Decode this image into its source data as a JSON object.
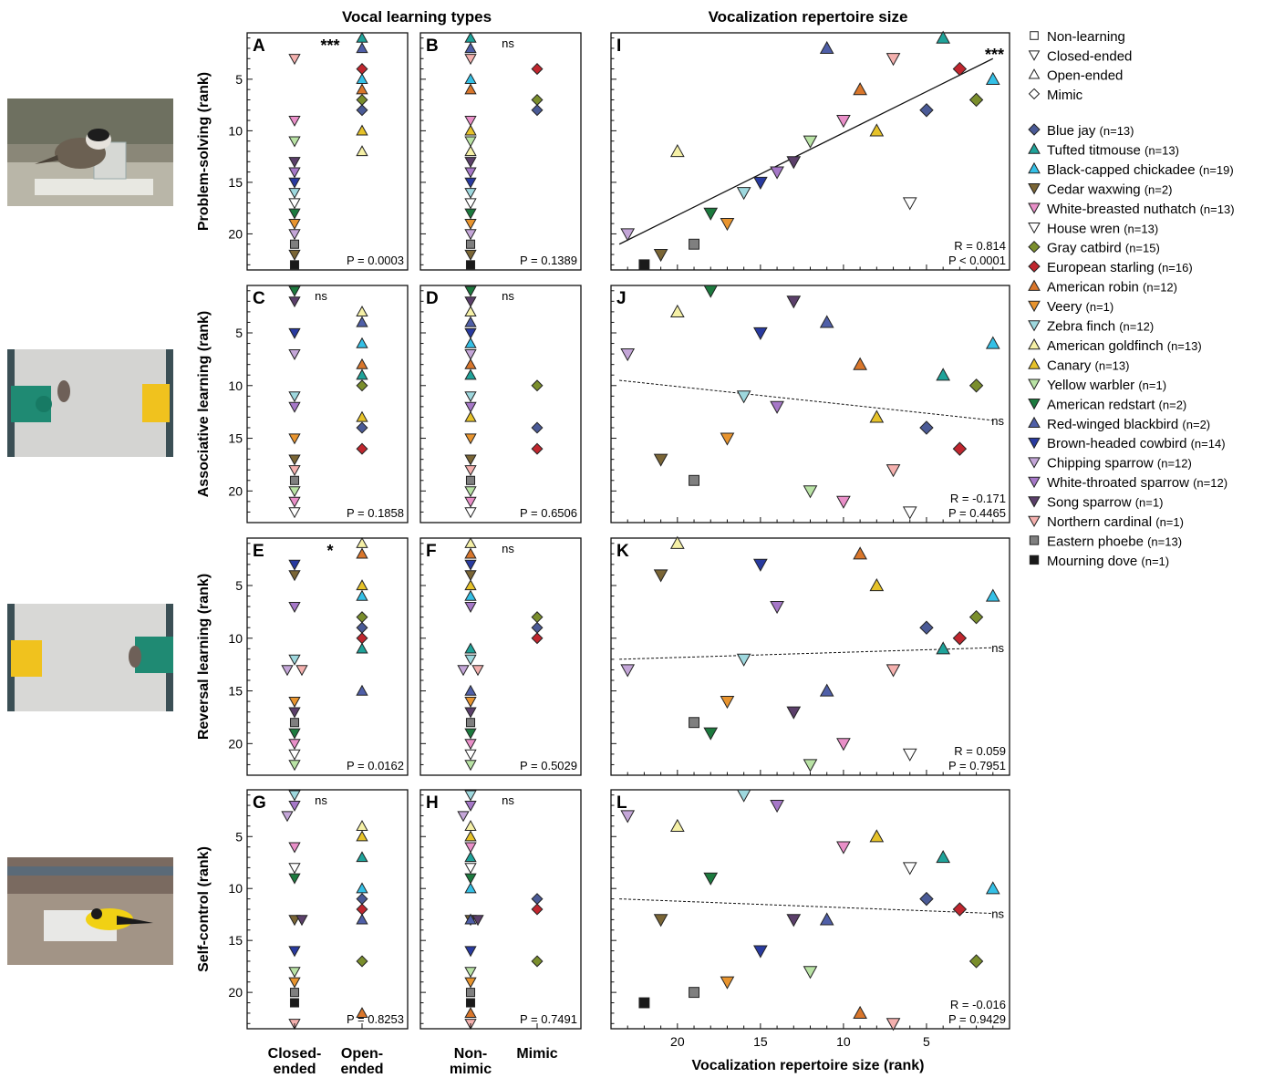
{
  "header": {
    "left_title": "Vocal learning types",
    "right_title": "Vocalization repertoire size"
  },
  "photos": [
    "bird-on-puzzle-box",
    "bird-between-green-and-yellow-cups",
    "bird-near-yellow-and-green-cups",
    "goldfinch-on-platform"
  ],
  "rows": [
    {
      "ylabel": "Problem-solving (rank)",
      "left_letter": "A",
      "mid_letter": "B",
      "right_letter": "I",
      "left_sig": "***",
      "mid_sig": "ns",
      "left_p": "P = 0.0003",
      "mid_p": "P = 0.1389",
      "right_sig": "***",
      "right_r": "R = 0.814",
      "right_p": "P < 0.0001"
    },
    {
      "ylabel": "Associative learning (rank)",
      "left_letter": "C",
      "mid_letter": "D",
      "right_letter": "J",
      "left_sig": "ns",
      "mid_sig": "ns",
      "left_p": "P = 0.1858",
      "mid_p": "P = 0.6506",
      "right_sig": "ns",
      "right_r": "R = -0.171",
      "right_p": "P = 0.4465"
    },
    {
      "ylabel": "Reversal learning (rank)",
      "left_letter": "E",
      "mid_letter": "F",
      "right_letter": "K",
      "left_sig": "*",
      "mid_sig": "ns",
      "left_p": "P = 0.0162",
      "mid_p": "P = 0.5029",
      "right_sig": "ns",
      "right_r": "R = 0.059",
      "right_p": "P = 0.7951"
    },
    {
      "ylabel": "Self-control (rank)",
      "left_letter": "G",
      "mid_letter": "H",
      "right_letter": "L",
      "left_sig": "ns",
      "mid_sig": "ns",
      "left_p": "P = 0.8253",
      "mid_p": "P = 0.7491",
      "right_sig": "ns",
      "right_r": "R = -0.016",
      "right_p": "P = 0.9429"
    }
  ],
  "xaxis": {
    "left_cats": [
      "Closed-\nended",
      "Open-\nended"
    ],
    "mid_cats": [
      "Non-\nmimic",
      "Mimic"
    ],
    "right_label": "Vocalization repertoire size (rank)",
    "right_ticks": [
      "20",
      "15",
      "10",
      "5"
    ]
  },
  "legend": {
    "types": [
      {
        "shape": "square",
        "label": "Non-learning"
      },
      {
        "shape": "tri-down",
        "label": "Closed-ended"
      },
      {
        "shape": "tri-up",
        "label": "Open-ended"
      },
      {
        "shape": "diamond",
        "label": "Mimic"
      }
    ],
    "species": [
      {
        "name": "Blue jay",
        "n": "(n=13)",
        "shape": "diamond",
        "color": "#4a5a96"
      },
      {
        "name": "Tufted titmouse",
        "n": "(n=13)",
        "shape": "tri-up",
        "color": "#1fa39a"
      },
      {
        "name": "Black-capped chickadee",
        "n": "(n=19)",
        "shape": "tri-up",
        "color": "#34c0e6"
      },
      {
        "name": "Cedar waxwing",
        "n": "(n=2)",
        "shape": "tri-down",
        "color": "#7a6535"
      },
      {
        "name": "White-breasted nuthatch",
        "n": "(n=13)",
        "shape": "tri-down",
        "color": "#e98fc8"
      },
      {
        "name": "House wren",
        "n": "(n=13)",
        "shape": "tri-down",
        "color": "#ffffff"
      },
      {
        "name": "Gray catbird",
        "n": "(n=15)",
        "shape": "diamond",
        "color": "#7a8e2c"
      },
      {
        "name": "European starling",
        "n": "(n=16)",
        "shape": "diamond",
        "color": "#c0262e"
      },
      {
        "name": "American robin",
        "n": "(n=12)",
        "shape": "tri-up",
        "color": "#d9762b"
      },
      {
        "name": "Veery",
        "n": "(n=1)",
        "shape": "tri-down",
        "color": "#e8942e"
      },
      {
        "name": "Zebra finch",
        "n": "(n=12)",
        "shape": "tri-down",
        "color": "#9ed8de"
      },
      {
        "name": "American goldfinch",
        "n": "(n=13)",
        "shape": "tri-up",
        "color": "#f5f0a6"
      },
      {
        "name": "Canary",
        "n": "(n=13)",
        "shape": "tri-up",
        "color": "#e6c229"
      },
      {
        "name": "Yellow warbler",
        "n": "(n=1)",
        "shape": "tri-down",
        "color": "#b9e3a5"
      },
      {
        "name": "American redstart",
        "n": "(n=2)",
        "shape": "tri-down",
        "color": "#1c7a3e"
      },
      {
        "name": "Red-winged blackbird",
        "n": "(n=2)",
        "shape": "tri-up",
        "color": "#4f5fa8"
      },
      {
        "name": "Brown-headed cowbird",
        "n": "(n=14)",
        "shape": "tri-down",
        "color": "#283aa0"
      },
      {
        "name": "Chipping sparrow",
        "n": "(n=12)",
        "shape": "tri-down",
        "color": "#c4a6d8"
      },
      {
        "name": "White-throated sparrow",
        "n": "(n=12)",
        "shape": "tri-down",
        "color": "#a678c8"
      },
      {
        "name": "Song sparrow",
        "n": "(n=1)",
        "shape": "tri-down",
        "color": "#5b3f6a"
      },
      {
        "name": "Northern cardinal",
        "n": "(n=1)",
        "shape": "tri-down",
        "color": "#f4b0ae"
      },
      {
        "name": "Eastern phoebe",
        "n": "(n=13)",
        "shape": "square",
        "color": "#7f7f7f"
      },
      {
        "name": "Mourning dove",
        "n": "(n=1)",
        "shape": "square",
        "color": "#1a1a1a"
      }
    ]
  },
  "chart_data": [
    {
      "type": "scatter",
      "panels": [
        "A/B",
        "I"
      ],
      "ylabel": "Problem-solving (rank)",
      "ylim": [
        23.5,
        0.5
      ],
      "yticks": [
        5,
        10,
        15,
        20
      ],
      "xlabel": "Vocalization repertoire size (rank)",
      "xlim": [
        24,
        0
      ],
      "points": [
        {
          "sp": "Blue jay",
          "vocal": 5,
          "y": 8
        },
        {
          "sp": "Tufted titmouse",
          "vocal": 4,
          "y": 1
        },
        {
          "sp": "Black-capped chickadee",
          "vocal": 1,
          "y": 5
        },
        {
          "sp": "Cedar waxwing",
          "vocal": 21,
          "y": 22
        },
        {
          "sp": "White-breasted nuthatch",
          "vocal": 10,
          "y": 9
        },
        {
          "sp": "House wren",
          "vocal": 6,
          "y": 17
        },
        {
          "sp": "Gray catbird",
          "vocal": 2,
          "y": 7
        },
        {
          "sp": "European starling",
          "vocal": 3,
          "y": 4
        },
        {
          "sp": "American robin",
          "vocal": 9,
          "y": 6
        },
        {
          "sp": "Veery",
          "vocal": 17,
          "y": 19
        },
        {
          "sp": "Zebra finch",
          "vocal": 16,
          "y": 16
        },
        {
          "sp": "American goldfinch",
          "vocal": 20,
          "y": 12
        },
        {
          "sp": "Canary",
          "vocal": 8,
          "y": 10
        },
        {
          "sp": "Yellow warbler",
          "vocal": 12,
          "y": 11
        },
        {
          "sp": "American redstart",
          "vocal": 18,
          "y": 18
        },
        {
          "sp": "Red-winged blackbird",
          "vocal": 11,
          "y": 2
        },
        {
          "sp": "Brown-headed cowbird",
          "vocal": 15,
          "y": 15
        },
        {
          "sp": "Chipping sparrow",
          "vocal": 23,
          "y": 20
        },
        {
          "sp": "White-throated sparrow",
          "vocal": 14,
          "y": 14
        },
        {
          "sp": "Song sparrow",
          "vocal": 13,
          "y": 13
        },
        {
          "sp": "Northern cardinal",
          "vocal": 7,
          "y": 3
        },
        {
          "sp": "Eastern phoebe",
          "vocal": 19,
          "y": 21
        },
        {
          "sp": "Mourning dove",
          "vocal": 22,
          "y": 23
        }
      ],
      "fit": {
        "x": [
          23.5,
          1
        ],
        "y": [
          21,
          3
        ],
        "style": "solid"
      }
    },
    {
      "type": "scatter",
      "panels": [
        "C/D",
        "J"
      ],
      "ylabel": "Associative learning (rank)",
      "ylim": [
        23,
        0.5
      ],
      "yticks": [
        5,
        10,
        15,
        20
      ],
      "xlabel": "Vocalization repertoire size (rank)",
      "xlim": [
        24,
        0
      ],
      "points": [
        {
          "sp": "Blue jay",
          "vocal": 5,
          "y": 14
        },
        {
          "sp": "Tufted titmouse",
          "vocal": 4,
          "y": 9
        },
        {
          "sp": "Black-capped chickadee",
          "vocal": 1,
          "y": 6
        },
        {
          "sp": "Cedar waxwing",
          "vocal": 21,
          "y": 17
        },
        {
          "sp": "White-breasted nuthatch",
          "vocal": 10,
          "y": 21
        },
        {
          "sp": "House wren",
          "vocal": 6,
          "y": 22
        },
        {
          "sp": "Gray catbird",
          "vocal": 2,
          "y": 10
        },
        {
          "sp": "European starling",
          "vocal": 3,
          "y": 16
        },
        {
          "sp": "American robin",
          "vocal": 9,
          "y": 8
        },
        {
          "sp": "Veery",
          "vocal": 17,
          "y": 15
        },
        {
          "sp": "Zebra finch",
          "vocal": 16,
          "y": 11
        },
        {
          "sp": "American goldfinch",
          "vocal": 20,
          "y": 3
        },
        {
          "sp": "Canary",
          "vocal": 8,
          "y": 13
        },
        {
          "sp": "Yellow warbler",
          "vocal": 12,
          "y": 20
        },
        {
          "sp": "American redstart",
          "vocal": 18,
          "y": 1
        },
        {
          "sp": "Red-winged blackbird",
          "vocal": 11,
          "y": 4
        },
        {
          "sp": "Brown-headed cowbird",
          "vocal": 15,
          "y": 5
        },
        {
          "sp": "Chipping sparrow",
          "vocal": 23,
          "y": 7
        },
        {
          "sp": "White-throated sparrow",
          "vocal": 14,
          "y": 12
        },
        {
          "sp": "Song sparrow",
          "vocal": 13,
          "y": 2
        },
        {
          "sp": "Northern cardinal",
          "vocal": 7,
          "y": 18
        },
        {
          "sp": "Eastern phoebe",
          "vocal": 19,
          "y": 19
        },
        {
          "sp": "Mourning dove",
          "vocal": null,
          "y": null
        }
      ],
      "fit": {
        "x": [
          23.5,
          1
        ],
        "y": [
          9.5,
          13.3
        ],
        "style": "dashed"
      }
    },
    {
      "type": "scatter",
      "panels": [
        "E/F",
        "K"
      ],
      "ylabel": "Reversal learning (rank)",
      "ylim": [
        23,
        0.5
      ],
      "yticks": [
        5,
        10,
        15,
        20
      ],
      "xlabel": "Vocalization repertoire size (rank)",
      "xlim": [
        24,
        0
      ],
      "points": [
        {
          "sp": "Blue jay",
          "vocal": 5,
          "y": 9
        },
        {
          "sp": "Tufted titmouse",
          "vocal": 4,
          "y": 11
        },
        {
          "sp": "Black-capped chickadee",
          "vocal": 1,
          "y": 6
        },
        {
          "sp": "Cedar waxwing",
          "vocal": 21,
          "y": 4
        },
        {
          "sp": "White-breasted nuthatch",
          "vocal": 10,
          "y": 20
        },
        {
          "sp": "House wren",
          "vocal": 6,
          "y": 21
        },
        {
          "sp": "Gray catbird",
          "vocal": 2,
          "y": 8
        },
        {
          "sp": "European starling",
          "vocal": 3,
          "y": 10
        },
        {
          "sp": "American robin",
          "vocal": 9,
          "y": 2
        },
        {
          "sp": "Veery",
          "vocal": 17,
          "y": 16
        },
        {
          "sp": "Zebra finch",
          "vocal": 16,
          "y": 12
        },
        {
          "sp": "American goldfinch",
          "vocal": 20,
          "y": 1
        },
        {
          "sp": "Canary",
          "vocal": 8,
          "y": 5
        },
        {
          "sp": "Yellow warbler",
          "vocal": 12,
          "y": 22
        },
        {
          "sp": "American redstart",
          "vocal": 18,
          "y": 19
        },
        {
          "sp": "Red-winged blackbird",
          "vocal": 11,
          "y": 15
        },
        {
          "sp": "Brown-headed cowbird",
          "vocal": 15,
          "y": 3
        },
        {
          "sp": "Chipping sparrow",
          "vocal": 23,
          "y": 13
        },
        {
          "sp": "White-throated sparrow",
          "vocal": 14,
          "y": 7
        },
        {
          "sp": "Song sparrow",
          "vocal": 13,
          "y": 17
        },
        {
          "sp": "Northern cardinal",
          "vocal": 7,
          "y": 13
        },
        {
          "sp": "Eastern phoebe",
          "vocal": 19,
          "y": 18
        },
        {
          "sp": "Mourning dove",
          "vocal": null,
          "y": null
        }
      ],
      "fit": {
        "x": [
          23.5,
          1
        ],
        "y": [
          12.0,
          10.9
        ],
        "style": "dashed"
      }
    },
    {
      "type": "scatter",
      "panels": [
        "G/H",
        "L"
      ],
      "ylabel": "Self-control (rank)",
      "ylim": [
        23.5,
        0.5
      ],
      "yticks": [
        5,
        10,
        15,
        20
      ],
      "xlabel": "Vocalization repertoire size (rank)",
      "xlim": [
        24,
        0
      ],
      "points": [
        {
          "sp": "Blue jay",
          "vocal": 5,
          "y": 11
        },
        {
          "sp": "Tufted titmouse",
          "vocal": 4,
          "y": 7
        },
        {
          "sp": "Black-capped chickadee",
          "vocal": 1,
          "y": 10
        },
        {
          "sp": "Cedar waxwing",
          "vocal": 21,
          "y": 13
        },
        {
          "sp": "White-breasted nuthatch",
          "vocal": 10,
          "y": 6
        },
        {
          "sp": "House wren",
          "vocal": 6,
          "y": 8
        },
        {
          "sp": "Gray catbird",
          "vocal": 2,
          "y": 17
        },
        {
          "sp": "European starling",
          "vocal": 3,
          "y": 12
        },
        {
          "sp": "American robin",
          "vocal": 9,
          "y": 22
        },
        {
          "sp": "Veery",
          "vocal": 17,
          "y": 19
        },
        {
          "sp": "Zebra finch",
          "vocal": 16,
          "y": 1
        },
        {
          "sp": "American goldfinch",
          "vocal": 20,
          "y": 4
        },
        {
          "sp": "Canary",
          "vocal": 8,
          "y": 5
        },
        {
          "sp": "Yellow warbler",
          "vocal": 12,
          "y": 18
        },
        {
          "sp": "American redstart",
          "vocal": 18,
          "y": 9
        },
        {
          "sp": "Red-winged blackbird",
          "vocal": 11,
          "y": 13
        },
        {
          "sp": "Brown-headed cowbird",
          "vocal": 15,
          "y": 16
        },
        {
          "sp": "Chipping sparrow",
          "vocal": 23,
          "y": 3
        },
        {
          "sp": "White-throated sparrow",
          "vocal": 14,
          "y": 2
        },
        {
          "sp": "Song sparrow",
          "vocal": 13,
          "y": 13
        },
        {
          "sp": "Northern cardinal",
          "vocal": 7,
          "y": 23
        },
        {
          "sp": "Eastern phoebe",
          "vocal": 19,
          "y": 20
        },
        {
          "sp": "Mourning dove",
          "vocal": 22,
          "y": 21
        }
      ],
      "fit": {
        "x": [
          23.5,
          1
        ],
        "y": [
          11.0,
          12.4
        ],
        "style": "dashed"
      }
    }
  ]
}
